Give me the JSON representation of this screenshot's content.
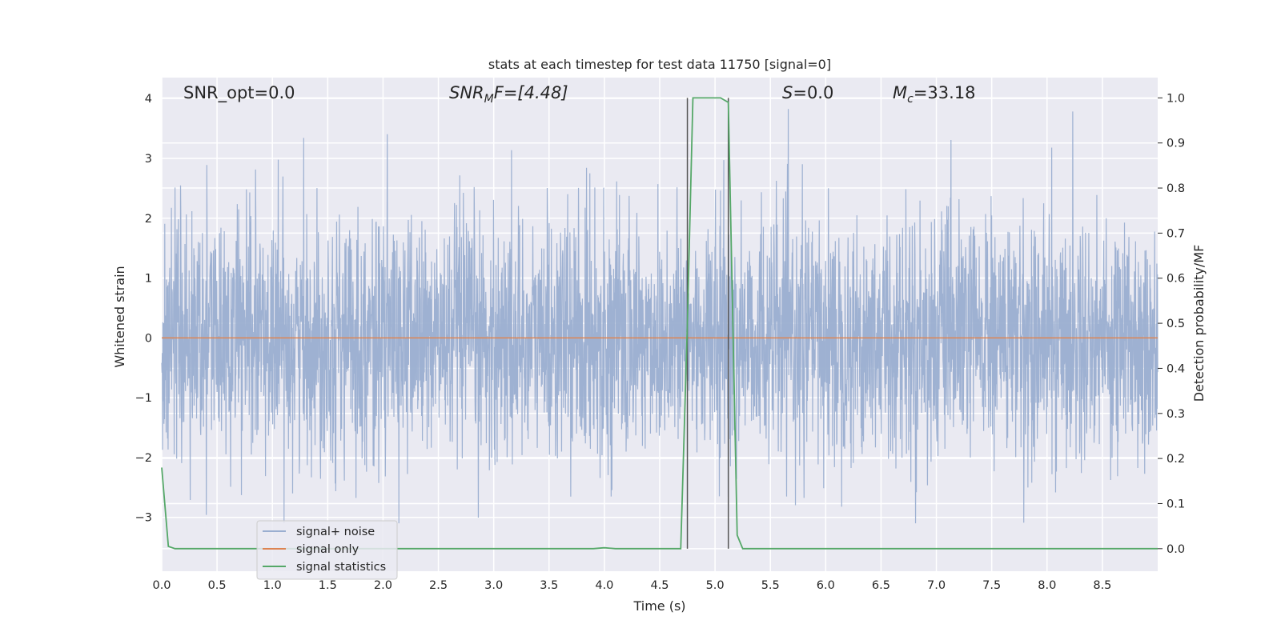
{
  "chart_data": {
    "type": "line",
    "title": "stats at each timestep for test data 11750 [signal=0]",
    "xlabel": "Time (s)",
    "ylabel": "Whitened strain",
    "y2label": "Detection probability/MF",
    "xlim": [
      0,
      9.0
    ],
    "ylim": [
      -3.9,
      4.35
    ],
    "y2lim": [
      -0.05,
      1.045
    ],
    "xticks": [
      "0.0",
      "0.5",
      "1.0",
      "1.5",
      "2.0",
      "2.5",
      "3.0",
      "3.5",
      "4.0",
      "4.5",
      "5.0",
      "5.5",
      "6.0",
      "6.5",
      "7.0",
      "7.5",
      "8.0",
      "8.5"
    ],
    "yticks": [
      "−3",
      "−2",
      "−1",
      "0",
      "1",
      "2",
      "3",
      "4"
    ],
    "y2ticks": [
      "0.0",
      "0.1",
      "0.2",
      "0.3",
      "0.4",
      "0.5",
      "0.6",
      "0.7",
      "0.8",
      "0.9",
      "1.0"
    ],
    "grid": true,
    "legend_position": "lower-left",
    "annotations": {
      "snr_opt": "SNR_opt=0.0",
      "snr_mf_main": "SNR",
      "snr_mf_sub": "M",
      "snr_mf_rest": "F=[4.48]",
      "s_main": "S",
      "s_rest": "=0.0",
      "mc_main": "M",
      "mc_sub": "c",
      "mc_rest": "=33.18"
    },
    "vertical_lines_x": [
      4.75,
      5.12
    ],
    "series": [
      {
        "name": "signal+ noise",
        "color": "#9aaed0",
        "axis": "left",
        "description_values": "dense whitened noise, approx N(0,1) over 0–9 s, extremes ≈ [-3.1, 4.0]"
      },
      {
        "name": "signal only",
        "color": "#dd8452",
        "axis": "left",
        "x": [
          0,
          9.0
        ],
        "y": [
          0,
          0
        ]
      },
      {
        "name": "signal statistics",
        "color": "#55a868",
        "axis": "right",
        "x": [
          0.0,
          0.06,
          0.12,
          1.0,
          2.0,
          3.0,
          3.9,
          4.0,
          4.1,
          4.5,
          4.69,
          4.75,
          4.8,
          4.9,
          5.05,
          5.12,
          5.2,
          5.25,
          6.0,
          7.0,
          8.0,
          9.0
        ],
        "y": [
          0.18,
          0.005,
          0.0,
          0.0,
          0.0,
          0.0,
          0.0,
          0.002,
          0.0,
          0.0,
          0.0,
          0.5,
          1.0,
          1.0,
          1.0,
          0.99,
          0.03,
          0.0,
          0.0,
          0.0,
          0.0,
          0.0
        ]
      }
    ]
  },
  "legend": {
    "items": [
      {
        "label": "signal+ noise",
        "color": "#9aaed0"
      },
      {
        "label": "signal only",
        "color": "#dd8452"
      },
      {
        "label": "signal statistics",
        "color": "#55a868"
      }
    ]
  },
  "colors": {
    "plot_background": "#eaeaf2",
    "grid": "#ffffff",
    "vertical_line": "#555555"
  }
}
